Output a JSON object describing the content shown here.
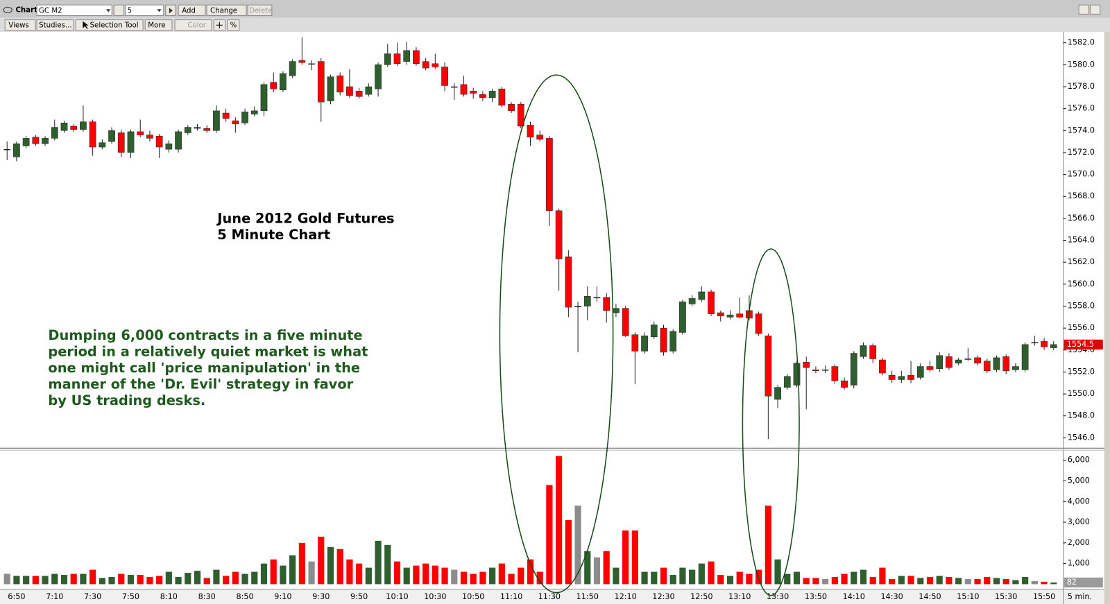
{
  "toolbar": {
    "window_title": "Chart",
    "symbol": "GC M2",
    "interval": "5",
    "buttons": [
      "Add",
      "Change",
      "Delete"
    ],
    "tools": [
      "Views",
      "Studies...",
      "Selection Tool",
      "More",
      "Color",
      "%"
    ]
  },
  "chart_data": {
    "type": "candlestick",
    "title": "June 2012 Gold Futures",
    "subtitle": "5 Minute Chart",
    "annotations": [
      "Dumping 6,000 contracts in a five minute",
      "period in a relatively quiet market is what",
      "one might call 'price manipulation' in the",
      "manner of the 'Dr. Evil' strategy in favor",
      "by US trading desks."
    ],
    "interval_label": "5 min.",
    "up_color": "#2f5f2f",
    "down_color": "#ff0000",
    "flat_color": "#8c8c8c",
    "categories": [
      null,
      "6:50",
      null,
      null,
      null,
      "7:10",
      null,
      null,
      null,
      "7:30",
      null,
      null,
      null,
      "7:50",
      null,
      null,
      null,
      "8:10",
      null,
      null,
      null,
      "8:30",
      null,
      null,
      null,
      "8:50",
      null,
      null,
      null,
      "9:10",
      null,
      null,
      null,
      "9:30",
      null,
      null,
      null,
      "9:50",
      null,
      null,
      null,
      "10:10",
      null,
      null,
      null,
      "10:30",
      null,
      null,
      null,
      "10:50",
      null,
      null,
      null,
      "11:10",
      null,
      null,
      null,
      "11:30",
      null,
      null,
      null,
      "11:50",
      null,
      null,
      null,
      "12:10",
      null,
      null,
      null,
      "12:30",
      null,
      null,
      null,
      "12:50",
      null,
      null,
      null,
      "13:10",
      null,
      null,
      null,
      "13:30",
      null,
      null,
      null,
      "13:50",
      null,
      null,
      null,
      "14:10",
      null,
      null,
      null,
      "14:30",
      null,
      null,
      null,
      "14:50",
      null,
      null,
      null,
      "15:10",
      null,
      null,
      null,
      "15:30",
      null,
      null,
      null,
      "15:50",
      null
    ],
    "open": [
      1572.3,
      1571.6,
      1572.6,
      1573.4,
      1572.8,
      1573.3,
      1574.0,
      1574.4,
      1574.1,
      1574.8,
      1572.5,
      1573.0,
      1573.8,
      1572.0,
      1573.9,
      1573.6,
      1573.5,
      1572.3,
      1572.3,
      1573.8,
      1574.2,
      1574.2,
      1574.0,
      1575.6,
      1574.9,
      1574.7,
      1575.5,
      1575.8,
      1578.4,
      1577.7,
      1579.0,
      1580.4,
      1580.1,
      1580.3,
      1576.7,
      1579.0,
      1578.0,
      1577.6,
      1577.3,
      1577.8,
      1580.0,
      1581.0,
      1580.3,
      1581.3,
      1580.3,
      1580.1,
      1579.8,
      1578.0,
      1578.2,
      1577.6,
      1577.3,
      1577.0,
      1577.8,
      1576.4,
      1576.4,
      1574.5,
      1573.6,
      1573.3,
      1566.7,
      1562.5,
      1558.0,
      1558.0,
      1558.8,
      1558.8,
      1557.4,
      1557.8,
      1555.4,
      1553.9,
      1555.2,
      1556.0,
      1553.9,
      1555.6,
      1558.2,
      1558.6,
      1559.3,
      1557.4,
      1557.0,
      1557.3,
      1557.6,
      1557.3,
      1555.3,
      1549.5,
      1550.6,
      1550.8,
      1552.9,
      1552.2,
      1552.2,
      1552.5,
      1551.2,
      1550.8,
      1553.4,
      1554.4,
      1553.1,
      1551.7,
      1551.3,
      1551.7,
      1551.5,
      1552.5,
      1552.3,
      1553.4,
      1552.8,
      1553.2,
      1553.3,
      1553.0,
      1552.2,
      1553.4,
      1552.2,
      1552.2,
      1554.7,
      1554.8,
      1554.2
    ],
    "high": [
      1573.0,
      1573.0,
      1573.5,
      1573.6,
      1573.5,
      1575.0,
      1574.9,
      1574.6,
      1576.3,
      1575.0,
      1573.2,
      1574.3,
      1574.1,
      1574.1,
      1575.0,
      1574.0,
      1573.7,
      1573.1,
      1574.1,
      1574.5,
      1574.6,
      1574.5,
      1576.3,
      1576.0,
      1575.2,
      1576.0,
      1576.2,
      1578.4,
      1579.3,
      1579.4,
      1580.5,
      1582.5,
      1580.4,
      1580.6,
      1579.1,
      1579.3,
      1579.6,
      1577.9,
      1578.3,
      1580.2,
      1581.9,
      1582.0,
      1582.1,
      1581.6,
      1580.6,
      1581.0,
      1580.2,
      1578.3,
      1579.0,
      1577.9,
      1577.6,
      1577.8,
      1578.0,
      1576.6,
      1576.6,
      1574.8,
      1574.0,
      1573.5,
      1566.9,
      1563.1,
      1558.4,
      1559.8,
      1559.8,
      1559.2,
      1558.2,
      1558.0,
      1555.6,
      1555.6,
      1556.6,
      1556.3,
      1555.9,
      1558.6,
      1559.0,
      1559.8,
      1559.5,
      1557.6,
      1557.6,
      1558.8,
      1559.0,
      1557.5,
      1555.5,
      1550.8,
      1551.8,
      1553.0,
      1553.4,
      1552.5,
      1552.6,
      1552.7,
      1551.5,
      1553.9,
      1554.7,
      1554.6,
      1553.3,
      1552.1,
      1552.1,
      1553.0,
      1552.8,
      1553.0,
      1553.8,
      1553.7,
      1553.3,
      1554.2,
      1553.5,
      1553.2,
      1553.5,
      1553.6,
      1552.8,
      1554.7,
      1555.3,
      1555.1,
      1554.8
    ],
    "low": [
      1571.3,
      1571.2,
      1572.4,
      1572.6,
      1572.6,
      1573.1,
      1573.8,
      1573.9,
      1573.9,
      1571.7,
      1572.3,
      1572.8,
      1571.6,
      1571.5,
      1573.4,
      1573.0,
      1571.5,
      1572.0,
      1572.0,
      1573.6,
      1574.0,
      1573.8,
      1573.8,
      1574.8,
      1573.8,
      1574.5,
      1575.3,
      1575.3,
      1577.5,
      1577.5,
      1578.8,
      1580.0,
      1579.5,
      1574.8,
      1576.4,
      1577.2,
      1577.0,
      1576.9,
      1577.1,
      1577.1,
      1579.8,
      1579.9,
      1580.0,
      1579.9,
      1579.5,
      1579.6,
      1577.6,
      1576.8,
      1577.1,
      1576.9,
      1576.7,
      1576.6,
      1576.1,
      1575.6,
      1574.2,
      1572.6,
      1573.0,
      1565.3,
      1559.4,
      1557.0,
      1553.8,
      1556.7,
      1558.4,
      1556.5,
      1557.0,
      1555.2,
      1550.9,
      1553.7,
      1555.0,
      1553.5,
      1553.7,
      1555.4,
      1558.0,
      1558.4,
      1557.1,
      1556.6,
      1556.8,
      1556.9,
      1556.7,
      1555.3,
      1545.9,
      1548.7,
      1550.4,
      1550.6,
      1548.6,
      1551.9,
      1551.9,
      1550.9,
      1550.4,
      1550.5,
      1553.2,
      1552.8,
      1551.7,
      1551.0,
      1551.0,
      1551.0,
      1551.3,
      1552.0,
      1552.0,
      1552.2,
      1552.6,
      1553.0,
      1552.6,
      1551.9,
      1552.0,
      1551.8,
      1552.0,
      1552.0,
      1554.4,
      1554.0,
      1554.0
    ],
    "close": [
      1572.3,
      1572.8,
      1573.3,
      1572.8,
      1573.3,
      1574.3,
      1574.7,
      1574.1,
      1574.8,
      1572.5,
      1572.9,
      1574.0,
      1572.0,
      1573.9,
      1573.6,
      1573.3,
      1572.5,
      1572.8,
      1573.9,
      1574.3,
      1574.3,
      1574.0,
      1575.8,
      1575.1,
      1574.6,
      1575.7,
      1575.8,
      1578.2,
      1577.8,
      1579.2,
      1580.3,
      1580.2,
      1580.1,
      1576.6,
      1578.9,
      1577.5,
      1577.2,
      1577.1,
      1578.0,
      1580.0,
      1581.0,
      1580.1,
      1581.3,
      1580.1,
      1579.7,
      1579.8,
      1578.1,
      1578.0,
      1577.3,
      1577.4,
      1577.0,
      1577.6,
      1576.3,
      1575.8,
      1574.4,
      1573.4,
      1573.2,
      1566.7,
      1562.3,
      1557.9,
      1558.0,
      1558.9,
      1558.8,
      1557.6,
      1557.8,
      1555.3,
      1553.9,
      1555.3,
      1556.3,
      1553.8,
      1555.7,
      1558.4,
      1558.7,
      1559.3,
      1557.3,
      1557.1,
      1557.2,
      1557.0,
      1556.9,
      1555.5,
      1549.8,
      1550.6,
      1551.6,
      1552.8,
      1552.4,
      1552.1,
      1552.2,
      1551.2,
      1550.6,
      1553.7,
      1554.4,
      1553.2,
      1551.9,
      1551.3,
      1551.6,
      1551.3,
      1552.5,
      1552.2,
      1553.5,
      1552.4,
      1553.1,
      1553.2,
      1552.8,
      1552.1,
      1553.3,
      1552.1,
      1552.5,
      1554.5,
      1554.7,
      1554.3,
      1554.5
    ],
    "volume": [
      500,
      400,
      400,
      400,
      400,
      500,
      450,
      500,
      500,
      700,
      300,
      350,
      500,
      450,
      450,
      350,
      400,
      600,
      350,
      550,
      650,
      300,
      700,
      400,
      600,
      500,
      600,
      1000,
      1200,
      900,
      1400,
      2000,
      1100,
      2300,
      1800,
      1700,
      1200,
      1000,
      800,
      2100,
      1900,
      1100,
      800,
      900,
      1000,
      900,
      800,
      700,
      600,
      500,
      600,
      800,
      1000,
      500,
      800,
      1200,
      600,
      4800,
      6200,
      3100,
      3800,
      1600,
      1300,
      1600,
      800,
      2600,
      2600,
      600,
      600,
      800,
      450,
      800,
      700,
      1000,
      1100,
      450,
      400,
      600,
      500,
      700,
      3800,
      1200,
      500,
      600,
      300,
      300,
      250,
      350,
      500,
      600,
      700,
      350,
      800,
      250,
      400,
      400,
      300,
      350,
      400,
      350,
      300,
      250,
      250,
      350,
      300,
      250,
      200,
      350,
      150,
      120,
      82
    ],
    "ylim": [
      1545.1,
      1583.0
    ],
    "yticks": [
      {
        "value": 1546,
        "label": "1546.0"
      },
      {
        "value": 1548,
        "label": "1548.0"
      },
      {
        "value": 1550,
        "label": "1550.0"
      },
      {
        "value": 1552,
        "label": "1552.0"
      },
      {
        "value": 1554,
        "label": "1554.0"
      },
      {
        "value": 1556,
        "label": "1556.0"
      },
      {
        "value": 1558,
        "label": "1558.0"
      },
      {
        "value": 1560,
        "label": "1560.0"
      },
      {
        "value": 1562,
        "label": "1562.0"
      },
      {
        "value": 1564,
        "label": "1564.0"
      },
      {
        "value": 1566,
        "label": "1566.0"
      },
      {
        "value": 1568,
        "label": "1568.0"
      },
      {
        "value": 1570,
        "label": "1570.0"
      },
      {
        "value": 1572,
        "label": "1572.0"
      },
      {
        "value": 1574,
        "label": "1574.0"
      },
      {
        "value": 1576,
        "label": "1576.0"
      },
      {
        "value": 1578,
        "label": "1578.0"
      },
      {
        "value": 1580,
        "label": "1580.0"
      },
      {
        "value": 1582,
        "label": "1582.0"
      }
    ],
    "volume_lim": [
      0,
      6470
    ],
    "volume_ticks": [
      {
        "value": 1000,
        "label": "1,000"
      },
      {
        "value": 2000,
        "label": "2,000"
      },
      {
        "value": 3000,
        "label": "3,000"
      },
      {
        "value": 4000,
        "label": "4,000"
      },
      {
        "value": 5000,
        "label": "5,000"
      },
      {
        "value": 6000,
        "label": "6,000"
      }
    ]
  }
}
